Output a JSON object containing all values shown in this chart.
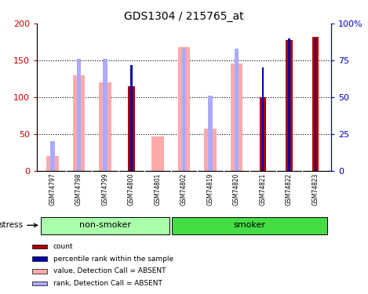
{
  "title": "GDS1304 / 215765_at",
  "samples": [
    "GSM74797",
    "GSM74798",
    "GSM74799",
    "GSM74800",
    "GSM74801",
    "GSM74802",
    "GSM74819",
    "GSM74820",
    "GSM74821",
    "GSM74822",
    "GSM74823"
  ],
  "count_values": [
    0,
    0,
    0,
    115,
    0,
    0,
    0,
    0,
    100,
    178,
    182
  ],
  "percentile_values": [
    0,
    0,
    0,
    72,
    0,
    0,
    0,
    0,
    70,
    90,
    90
  ],
  "absent_value_values": [
    20,
    130,
    120,
    0,
    46,
    168,
    57,
    146,
    0,
    0,
    0
  ],
  "absent_rank_values": [
    20,
    76,
    76,
    0,
    0,
    83,
    51,
    83,
    0,
    0,
    0
  ],
  "ylim_left": [
    0,
    200
  ],
  "ylim_right": [
    0,
    100
  ],
  "y_ticks_left": [
    0,
    50,
    100,
    150,
    200
  ],
  "y_ticks_right": [
    0,
    25,
    50,
    75,
    100
  ],
  "y_tick_labels_left": [
    "0",
    "50",
    "100",
    "150",
    "200"
  ],
  "y_tick_labels_right": [
    "0",
    "25",
    "50",
    "75",
    "100%"
  ],
  "groups": [
    {
      "label": "non-smoker",
      "start": 0,
      "end": 4,
      "color": "#aaffaa"
    },
    {
      "label": "smoker",
      "start": 5,
      "end": 10,
      "color": "#44dd44"
    }
  ],
  "stress_label": "stress",
  "color_count": "#aa0000",
  "color_percentile": "#0000aa",
  "color_absent_value": "#ffaaaa",
  "color_absent_rank": "#aaaaff",
  "background_color": "#ffffff",
  "plot_bg": "#ffffff",
  "tick_color_left": "#cc0000",
  "tick_color_right": "#0000cc"
}
